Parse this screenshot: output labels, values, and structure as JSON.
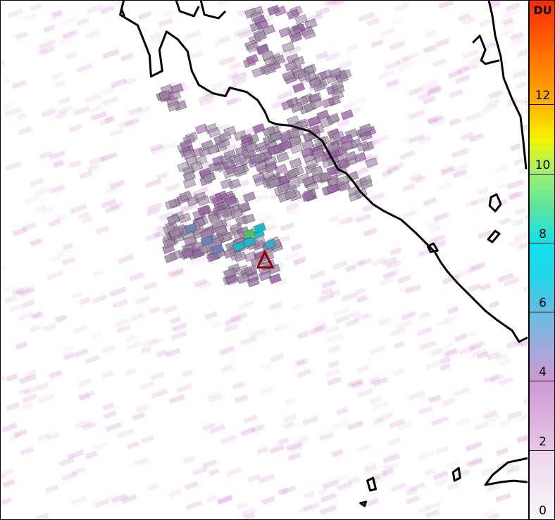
{
  "colorbar": {
    "unit": "DU",
    "range": [
      0,
      15
    ],
    "ticks": [
      "0",
      "2",
      "4",
      "6",
      "8",
      "10",
      "12"
    ],
    "stops": [
      {
        "v": 0,
        "c": "#faf4fa"
      },
      {
        "v": 2,
        "c": "#ecd6ec"
      },
      {
        "v": 2.01,
        "c": "#e6c6e6"
      },
      {
        "v": 4,
        "c": "#cf98d4"
      },
      {
        "v": 5,
        "c": "#9eabdd"
      },
      {
        "v": 6,
        "c": "#62bde2"
      },
      {
        "v": 7,
        "c": "#22d6ea"
      },
      {
        "v": 8,
        "c": "#12e2ea"
      },
      {
        "v": 9,
        "c": "#5ae4a0"
      },
      {
        "v": 10,
        "c": "#9ef070"
      },
      {
        "v": 11,
        "c": "#f4f400"
      },
      {
        "v": 12,
        "c": "#ffb000"
      },
      {
        "v": 15,
        "c": "#ff2a00"
      }
    ]
  },
  "map": {
    "coastline_color": "#000000",
    "volcano_marker": {
      "icon": "triangle-icon",
      "color": "#8b0000"
    }
  }
}
